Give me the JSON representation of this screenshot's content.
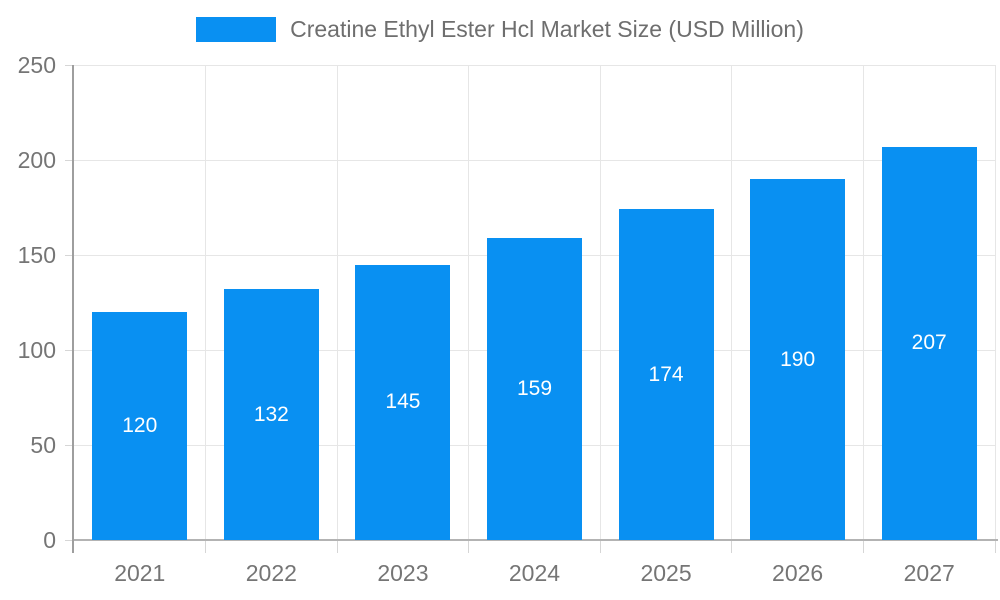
{
  "legend": {
    "label": "Creatine Ethyl Ester Hcl Market Size (USD Million)"
  },
  "chart_data": {
    "type": "bar",
    "title": "Creatine Ethyl Ester Hcl Market Size (USD Million)",
    "categories": [
      "2021",
      "2022",
      "2023",
      "2024",
      "2025",
      "2026",
      "2027"
    ],
    "values": [
      120,
      132,
      145,
      159,
      174,
      190,
      207
    ],
    "value_labels": [
      "120",
      "132",
      "145",
      "159",
      "174",
      "190",
      "207"
    ],
    "xlabel": "",
    "ylabel": "",
    "ylim": [
      0,
      250
    ],
    "yticks": [
      0,
      50,
      100,
      150,
      200,
      250
    ],
    "grid": true,
    "legend_position": "top-center",
    "bar_label_position": "center-inside"
  },
  "colors": {
    "bar": "#0990f2",
    "grid": "#e6e6e6",
    "tick": "#d6d6d6",
    "axis_y": "#9e9e9e",
    "axis_x": "#b3b3b3",
    "axis_text": "#757575",
    "legend_text": "#6e6e6e",
    "bar_value_text": "#ffffff",
    "background": "#ffffff"
  }
}
